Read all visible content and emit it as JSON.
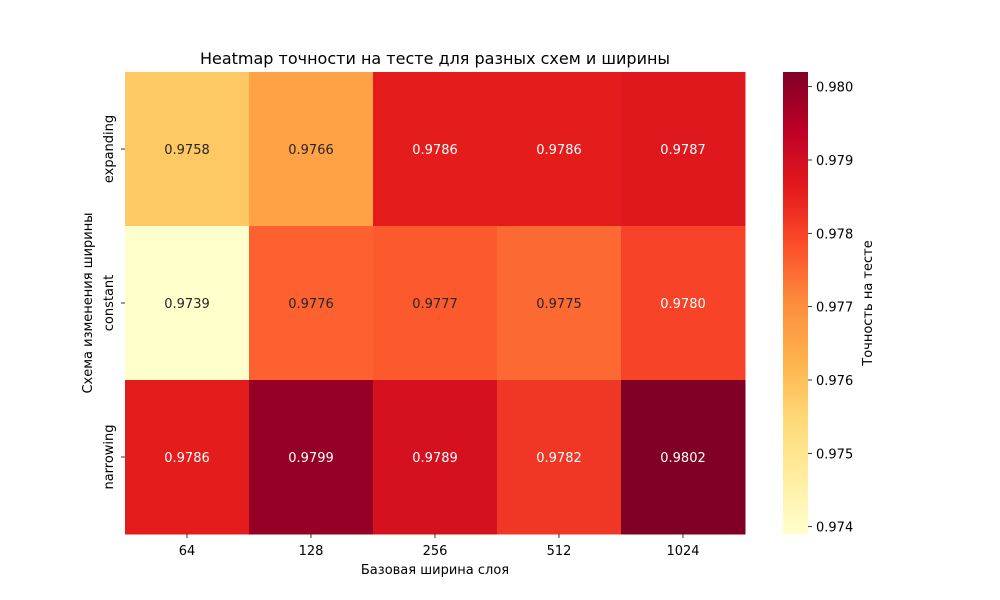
{
  "chart_data": {
    "type": "heatmap",
    "title": "Heatmap точности на тесте для разных схем и ширины",
    "xlabel": "Базовая ширина слоя",
    "ylabel": "Схема изменения ширины",
    "x_categories": [
      "64",
      "128",
      "256",
      "512",
      "1024"
    ],
    "y_categories": [
      "expanding",
      "constant",
      "narrowing"
    ],
    "values": [
      [
        0.9758,
        0.9766,
        0.9786,
        0.9786,
        0.9787
      ],
      [
        0.9739,
        0.9776,
        0.9777,
        0.9775,
        0.978
      ],
      [
        0.9786,
        0.9799,
        0.9789,
        0.9782,
        0.9802
      ]
    ],
    "value_labels": [
      [
        "0.9758",
        "0.9766",
        "0.9786",
        "0.9786",
        "0.9787"
      ],
      [
        "0.9739",
        "0.9776",
        "0.9777",
        "0.9775",
        "0.9780"
      ],
      [
        "0.9786",
        "0.9799",
        "0.9789",
        "0.9782",
        "0.9802"
      ]
    ],
    "colormap": "YlOrRd",
    "colorbar": {
      "label": "Точность на тесте",
      "vmin": 0.9739,
      "vmax": 0.9802,
      "ticks": [
        0.974,
        0.975,
        0.976,
        0.977,
        0.978,
        0.979,
        0.98
      ],
      "tick_labels": [
        "0.974",
        "0.975",
        "0.976",
        "0.977",
        "0.978",
        "0.979",
        "0.980"
      ]
    },
    "grid": false
  }
}
